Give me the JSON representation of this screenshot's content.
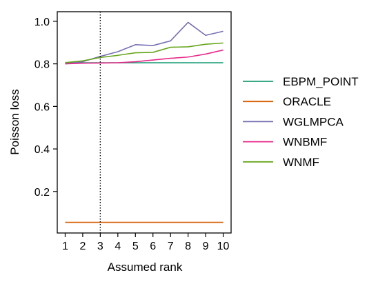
{
  "chart_data": {
    "type": "line",
    "xlabel": "Assumed rank",
    "ylabel": "Poisson loss",
    "x": [
      1,
      2,
      3,
      4,
      5,
      6,
      7,
      8,
      9,
      10
    ],
    "xticks": [
      "1",
      "2",
      "3",
      "4",
      "5",
      "6",
      "7",
      "8",
      "9",
      "10"
    ],
    "yticks": [
      {
        "value": 0.2,
        "label": "0.2"
      },
      {
        "value": 0.4,
        "label": "0.4"
      },
      {
        "value": 0.6,
        "label": "0.6"
      },
      {
        "value": 0.8,
        "label": "0.8"
      },
      {
        "value": 1.0,
        "label": "1.0"
      }
    ],
    "xlim": [
      0.55,
      10.45
    ],
    "ylim": [
      0.005,
      1.045
    ],
    "grid": false,
    "legend_position": "right",
    "vline": {
      "x": 3,
      "style": "dotted",
      "color": "#000000"
    },
    "series": [
      {
        "name": "EBPM_POINT",
        "color": "#1b9e77",
        "values": [
          0.805,
          0.805,
          0.805,
          0.805,
          0.805,
          0.805,
          0.805,
          0.805,
          0.805,
          0.805
        ]
      },
      {
        "name": "ORACLE",
        "color": "#d95f02",
        "values": [
          0.055,
          0.055,
          0.055,
          0.055,
          0.055,
          0.055,
          0.055,
          0.055,
          0.055,
          0.055
        ]
      },
      {
        "name": "WGLMPCA",
        "color": "#7570b3",
        "values": [
          0.8,
          0.81,
          0.835,
          0.857,
          0.89,
          0.886,
          0.908,
          0.995,
          0.934,
          0.953
        ]
      },
      {
        "name": "WNBMF",
        "color": "#e7298a",
        "values": [
          0.8,
          0.803,
          0.804,
          0.805,
          0.81,
          0.818,
          0.826,
          0.832,
          0.846,
          0.865
        ]
      },
      {
        "name": "WNMF",
        "color": "#66a61e",
        "values": [
          0.806,
          0.814,
          0.83,
          0.84,
          0.852,
          0.854,
          0.878,
          0.88,
          0.892,
          0.898
        ]
      }
    ]
  }
}
